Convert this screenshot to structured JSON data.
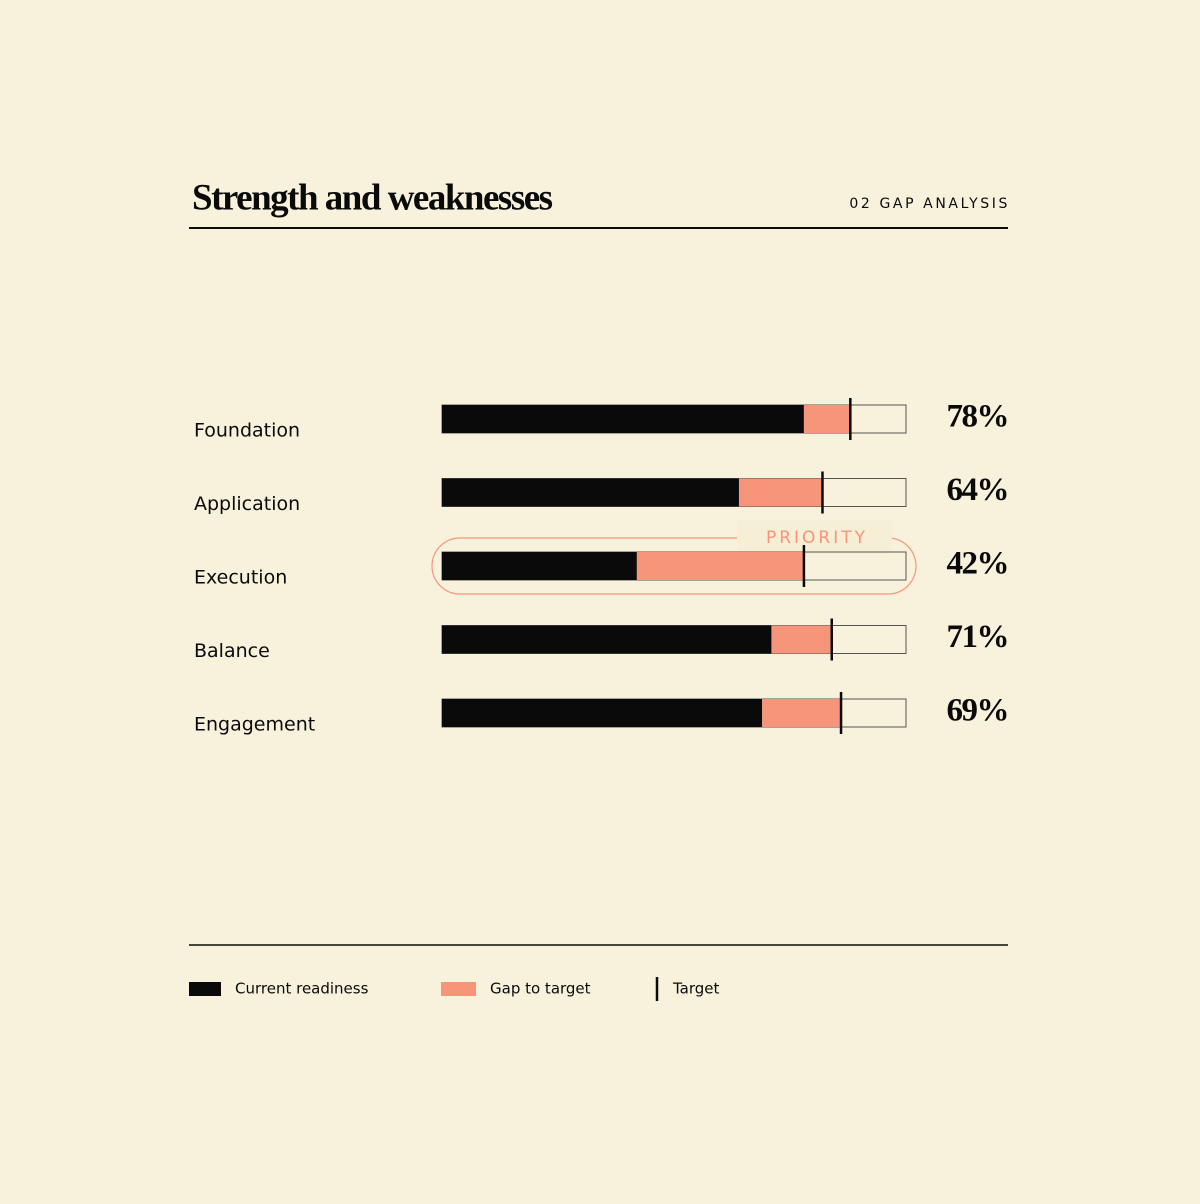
{
  "chart_data": {
    "type": "bar",
    "title": "Strength and weaknesses",
    "subtitle": "02 GAP ANALYSIS",
    "categories": [
      "Foundation",
      "Application",
      "Execution",
      "Balance",
      "Engagement"
    ],
    "series": [
      {
        "name": "Current readiness",
        "color": "#0a0a0a",
        "values": [
          78,
          64,
          42,
          71,
          69
        ],
        "value_labels": [
          "78%",
          "64%",
          "42%",
          "71%",
          "69%"
        ]
      },
      {
        "name": "Gap to target",
        "color": "#f7957a",
        "values": [
          10,
          18,
          36,
          13,
          17
        ]
      },
      {
        "name": "Target",
        "color": "#0a0a0a",
        "values": [
          88,
          82,
          78,
          84,
          86
        ]
      }
    ],
    "xlim": [
      0,
      100
    ],
    "annotation": {
      "text": "PRIORITY",
      "category": "Execution",
      "color": "#f7957a"
    },
    "legend": "bottom"
  }
}
